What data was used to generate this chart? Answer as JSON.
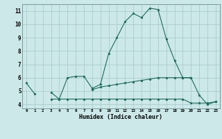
{
  "xlabel": "Humidex (Indice chaleur)",
  "bg_color": "#cce8e8",
  "grid_color": "#aacccc",
  "line_color": "#1a6b5a",
  "x": [
    0,
    1,
    2,
    3,
    4,
    5,
    6,
    7,
    8,
    9,
    10,
    11,
    12,
    13,
    14,
    15,
    16,
    17,
    18,
    19,
    20,
    21,
    22,
    23
  ],
  "line1": [
    5.6,
    4.8,
    null,
    4.9,
    4.4,
    6.0,
    6.1,
    6.1,
    5.2,
    5.5,
    7.8,
    9.0,
    10.2,
    10.8,
    10.5,
    11.2,
    11.1,
    8.9,
    7.3,
    6.0,
    6.0,
    4.7,
    4.0,
    4.2
  ],
  "line2": [
    null,
    null,
    null,
    4.4,
    4.4,
    4.4,
    4.4,
    4.4,
    4.4,
    4.4,
    4.4,
    4.4,
    4.4,
    4.4,
    4.4,
    4.4,
    4.4,
    4.4,
    4.4,
    4.4,
    4.1,
    4.1,
    4.1,
    4.2
  ],
  "line3": [
    null,
    null,
    null,
    null,
    null,
    null,
    null,
    null,
    5.1,
    5.3,
    5.4,
    5.5,
    5.6,
    5.7,
    5.8,
    5.9,
    6.0,
    6.0,
    6.0,
    6.0,
    6.0,
    null,
    null,
    null
  ],
  "ylim": [
    3.7,
    11.5
  ],
  "yticks": [
    4,
    5,
    6,
    7,
    8,
    9,
    10,
    11
  ],
  "xlim": [
    -0.5,
    23.5
  ],
  "xtick_labels": [
    "0",
    "1",
    "2",
    "3",
    "4",
    "5",
    "6",
    "7",
    "8",
    "9",
    "10",
    "11",
    "12",
    "13",
    "14",
    "15",
    "16",
    "17",
    "18",
    "19",
    "20",
    "21",
    "22",
    "23"
  ]
}
